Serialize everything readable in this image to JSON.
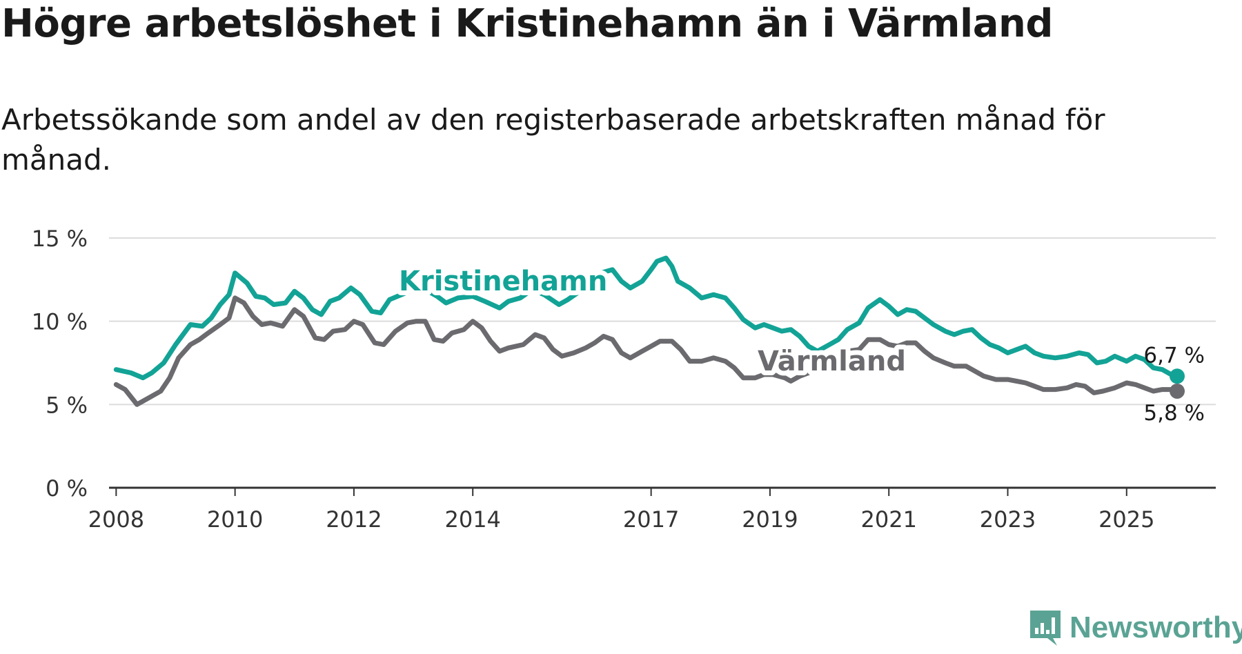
{
  "title": "Högre arbetslöshet i Kristinehamn än i Värmland",
  "subtitle": "Arbetssökande som andel av den registerbaserade arbetskraften månad för månad.",
  "brand": {
    "name": "Newsworthy",
    "icon": "newsworthy-logo-icon",
    "color": "#5aa394"
  },
  "chart_data": {
    "type": "line",
    "title": "Högre arbetslöshet i Kristinehamn än i Värmland",
    "xlabel": "",
    "ylabel": "",
    "ylim": [
      0,
      15
    ],
    "xlim": [
      2007.88,
      2026.5
    ],
    "grid": true,
    "yticks": [
      0,
      5,
      10,
      15
    ],
    "ytick_labels": [
      "0 %",
      "5 %",
      "10 %",
      "15 %"
    ],
    "xticks": [
      2008,
      2010,
      2012,
      2014,
      2017,
      2019,
      2021,
      2023,
      2025
    ],
    "xtick_labels": [
      "2008",
      "2010",
      "2012",
      "2014",
      "2017",
      "2019",
      "2021",
      "2023",
      "2025"
    ],
    "legend": "direct-labels",
    "series": [
      {
        "name": "Kristinehamn",
        "color": "#12a396",
        "end_label": "6,7 %",
        "points": [
          [
            2008.0,
            7.1
          ],
          [
            2008.25,
            6.9
          ],
          [
            2008.45,
            6.6
          ],
          [
            2008.6,
            6.9
          ],
          [
            2008.8,
            7.5
          ],
          [
            2009.0,
            8.6
          ],
          [
            2009.25,
            9.8
          ],
          [
            2009.45,
            9.7
          ],
          [
            2009.6,
            10.2
          ],
          [
            2009.75,
            11.0
          ],
          [
            2009.9,
            11.6
          ],
          [
            2010.0,
            12.9
          ],
          [
            2010.2,
            12.3
          ],
          [
            2010.35,
            11.5
          ],
          [
            2010.5,
            11.4
          ],
          [
            2010.65,
            11.0
          ],
          [
            2010.85,
            11.1
          ],
          [
            2011.0,
            11.8
          ],
          [
            2011.15,
            11.4
          ],
          [
            2011.3,
            10.7
          ],
          [
            2011.45,
            10.4
          ],
          [
            2011.6,
            11.2
          ],
          [
            2011.75,
            11.4
          ],
          [
            2011.95,
            12.0
          ],
          [
            2012.1,
            11.6
          ],
          [
            2012.3,
            10.6
          ],
          [
            2012.45,
            10.5
          ],
          [
            2012.6,
            11.3
          ],
          [
            2012.8,
            11.6
          ],
          [
            2013.0,
            11.9
          ],
          [
            2013.2,
            11.9
          ],
          [
            2013.4,
            11.5
          ],
          [
            2013.55,
            11.1
          ],
          [
            2013.75,
            11.4
          ],
          [
            2014.0,
            11.5
          ],
          [
            2014.2,
            11.2
          ],
          [
            2014.45,
            10.8
          ],
          [
            2014.6,
            11.2
          ],
          [
            2014.8,
            11.4
          ],
          [
            2015.0,
            11.9
          ],
          [
            2015.2,
            11.6
          ],
          [
            2015.45,
            11.0
          ],
          [
            2015.6,
            11.3
          ],
          [
            2015.8,
            11.8
          ],
          [
            2016.0,
            12.2
          ],
          [
            2016.15,
            12.9
          ],
          [
            2016.35,
            13.1
          ],
          [
            2016.5,
            12.4
          ],
          [
            2016.65,
            12.0
          ],
          [
            2016.85,
            12.4
          ],
          [
            2017.0,
            13.1
          ],
          [
            2017.1,
            13.6
          ],
          [
            2017.25,
            13.8
          ],
          [
            2017.35,
            13.3
          ],
          [
            2017.45,
            12.4
          ],
          [
            2017.65,
            12.0
          ],
          [
            2017.85,
            11.4
          ],
          [
            2018.05,
            11.6
          ],
          [
            2018.25,
            11.4
          ],
          [
            2018.4,
            10.8
          ],
          [
            2018.55,
            10.1
          ],
          [
            2018.75,
            9.6
          ],
          [
            2018.9,
            9.8
          ],
          [
            2019.05,
            9.6
          ],
          [
            2019.2,
            9.4
          ],
          [
            2019.35,
            9.5
          ],
          [
            2019.5,
            9.1
          ],
          [
            2019.65,
            8.5
          ],
          [
            2019.8,
            8.2
          ],
          [
            2020.0,
            8.6
          ],
          [
            2020.15,
            8.9
          ],
          [
            2020.3,
            9.5
          ],
          [
            2020.5,
            9.9
          ],
          [
            2020.65,
            10.8
          ],
          [
            2020.85,
            11.3
          ],
          [
            2021.0,
            10.9
          ],
          [
            2021.15,
            10.4
          ],
          [
            2021.3,
            10.7
          ],
          [
            2021.45,
            10.6
          ],
          [
            2021.6,
            10.2
          ],
          [
            2021.75,
            9.8
          ],
          [
            2021.95,
            9.4
          ],
          [
            2022.1,
            9.2
          ],
          [
            2022.25,
            9.4
          ],
          [
            2022.4,
            9.5
          ],
          [
            2022.55,
            9.0
          ],
          [
            2022.7,
            8.6
          ],
          [
            2022.85,
            8.4
          ],
          [
            2023.0,
            8.1
          ],
          [
            2023.15,
            8.3
          ],
          [
            2023.3,
            8.5
          ],
          [
            2023.45,
            8.1
          ],
          [
            2023.6,
            7.9
          ],
          [
            2023.8,
            7.8
          ],
          [
            2024.0,
            7.9
          ],
          [
            2024.2,
            8.1
          ],
          [
            2024.35,
            8.0
          ],
          [
            2024.5,
            7.5
          ],
          [
            2024.65,
            7.6
          ],
          [
            2024.8,
            7.9
          ],
          [
            2025.0,
            7.6
          ],
          [
            2025.15,
            7.9
          ],
          [
            2025.3,
            7.7
          ],
          [
            2025.45,
            7.2
          ],
          [
            2025.6,
            7.1
          ],
          [
            2025.75,
            6.8
          ],
          [
            2025.85,
            6.7
          ]
        ]
      },
      {
        "name": "Värmland",
        "color": "#6b6b6f",
        "end_label": "5,8 %",
        "points": [
          [
            2008.0,
            6.2
          ],
          [
            2008.15,
            5.9
          ],
          [
            2008.35,
            5.0
          ],
          [
            2008.55,
            5.4
          ],
          [
            2008.75,
            5.8
          ],
          [
            2008.9,
            6.6
          ],
          [
            2009.05,
            7.8
          ],
          [
            2009.25,
            8.6
          ],
          [
            2009.4,
            8.9
          ],
          [
            2009.55,
            9.3
          ],
          [
            2009.75,
            9.8
          ],
          [
            2009.9,
            10.2
          ],
          [
            2010.0,
            11.4
          ],
          [
            2010.15,
            11.1
          ],
          [
            2010.3,
            10.3
          ],
          [
            2010.45,
            9.8
          ],
          [
            2010.6,
            9.9
          ],
          [
            2010.8,
            9.7
          ],
          [
            2011.0,
            10.7
          ],
          [
            2011.15,
            10.3
          ],
          [
            2011.35,
            9.0
          ],
          [
            2011.5,
            8.9
          ],
          [
            2011.65,
            9.4
          ],
          [
            2011.85,
            9.5
          ],
          [
            2012.0,
            10.0
          ],
          [
            2012.15,
            9.8
          ],
          [
            2012.35,
            8.7
          ],
          [
            2012.5,
            8.6
          ],
          [
            2012.7,
            9.4
          ],
          [
            2012.9,
            9.9
          ],
          [
            2013.05,
            10.0
          ],
          [
            2013.2,
            10.0
          ],
          [
            2013.35,
            8.9
          ],
          [
            2013.5,
            8.8
          ],
          [
            2013.65,
            9.3
          ],
          [
            2013.85,
            9.5
          ],
          [
            2014.0,
            10.0
          ],
          [
            2014.15,
            9.6
          ],
          [
            2014.3,
            8.8
          ],
          [
            2014.45,
            8.2
          ],
          [
            2014.6,
            8.4
          ],
          [
            2014.85,
            8.6
          ],
          [
            2015.05,
            9.2
          ],
          [
            2015.2,
            9.0
          ],
          [
            2015.35,
            8.3
          ],
          [
            2015.5,
            7.9
          ],
          [
            2015.7,
            8.1
          ],
          [
            2015.9,
            8.4
          ],
          [
            2016.05,
            8.7
          ],
          [
            2016.2,
            9.1
          ],
          [
            2016.35,
            8.9
          ],
          [
            2016.5,
            8.1
          ],
          [
            2016.65,
            7.8
          ],
          [
            2016.85,
            8.2
          ],
          [
            2017.0,
            8.5
          ],
          [
            2017.15,
            8.8
          ],
          [
            2017.35,
            8.8
          ],
          [
            2017.5,
            8.3
          ],
          [
            2017.65,
            7.6
          ],
          [
            2017.85,
            7.6
          ],
          [
            2018.05,
            7.8
          ],
          [
            2018.25,
            7.6
          ],
          [
            2018.4,
            7.2
          ],
          [
            2018.55,
            6.6
          ],
          [
            2018.75,
            6.6
          ],
          [
            2018.9,
            6.8
          ],
          [
            2019.05,
            6.8
          ],
          [
            2019.25,
            6.6
          ],
          [
            2019.35,
            6.4
          ],
          [
            2019.5,
            6.7
          ],
          [
            2019.65,
            6.9
          ],
          [
            2019.8,
            7.2
          ],
          [
            2020.0,
            7.5
          ],
          [
            2020.15,
            7.8
          ],
          [
            2020.3,
            8.2
          ],
          [
            2020.5,
            8.3
          ],
          [
            2020.65,
            8.9
          ],
          [
            2020.85,
            8.9
          ],
          [
            2021.0,
            8.6
          ],
          [
            2021.15,
            8.5
          ],
          [
            2021.3,
            8.7
          ],
          [
            2021.45,
            8.7
          ],
          [
            2021.6,
            8.2
          ],
          [
            2021.75,
            7.8
          ],
          [
            2021.95,
            7.5
          ],
          [
            2022.1,
            7.3
          ],
          [
            2022.3,
            7.3
          ],
          [
            2022.45,
            7.0
          ],
          [
            2022.6,
            6.7
          ],
          [
            2022.8,
            6.5
          ],
          [
            2023.0,
            6.5
          ],
          [
            2023.15,
            6.4
          ],
          [
            2023.3,
            6.3
          ],
          [
            2023.45,
            6.1
          ],
          [
            2023.6,
            5.9
          ],
          [
            2023.8,
            5.9
          ],
          [
            2024.0,
            6.0
          ],
          [
            2024.15,
            6.2
          ],
          [
            2024.3,
            6.1
          ],
          [
            2024.45,
            5.7
          ],
          [
            2024.6,
            5.8
          ],
          [
            2024.8,
            6.0
          ],
          [
            2025.0,
            6.3
          ],
          [
            2025.15,
            6.2
          ],
          [
            2025.3,
            6.0
          ],
          [
            2025.45,
            5.8
          ],
          [
            2025.6,
            5.9
          ],
          [
            2025.75,
            5.9
          ],
          [
            2025.85,
            5.8
          ]
        ]
      }
    ]
  }
}
